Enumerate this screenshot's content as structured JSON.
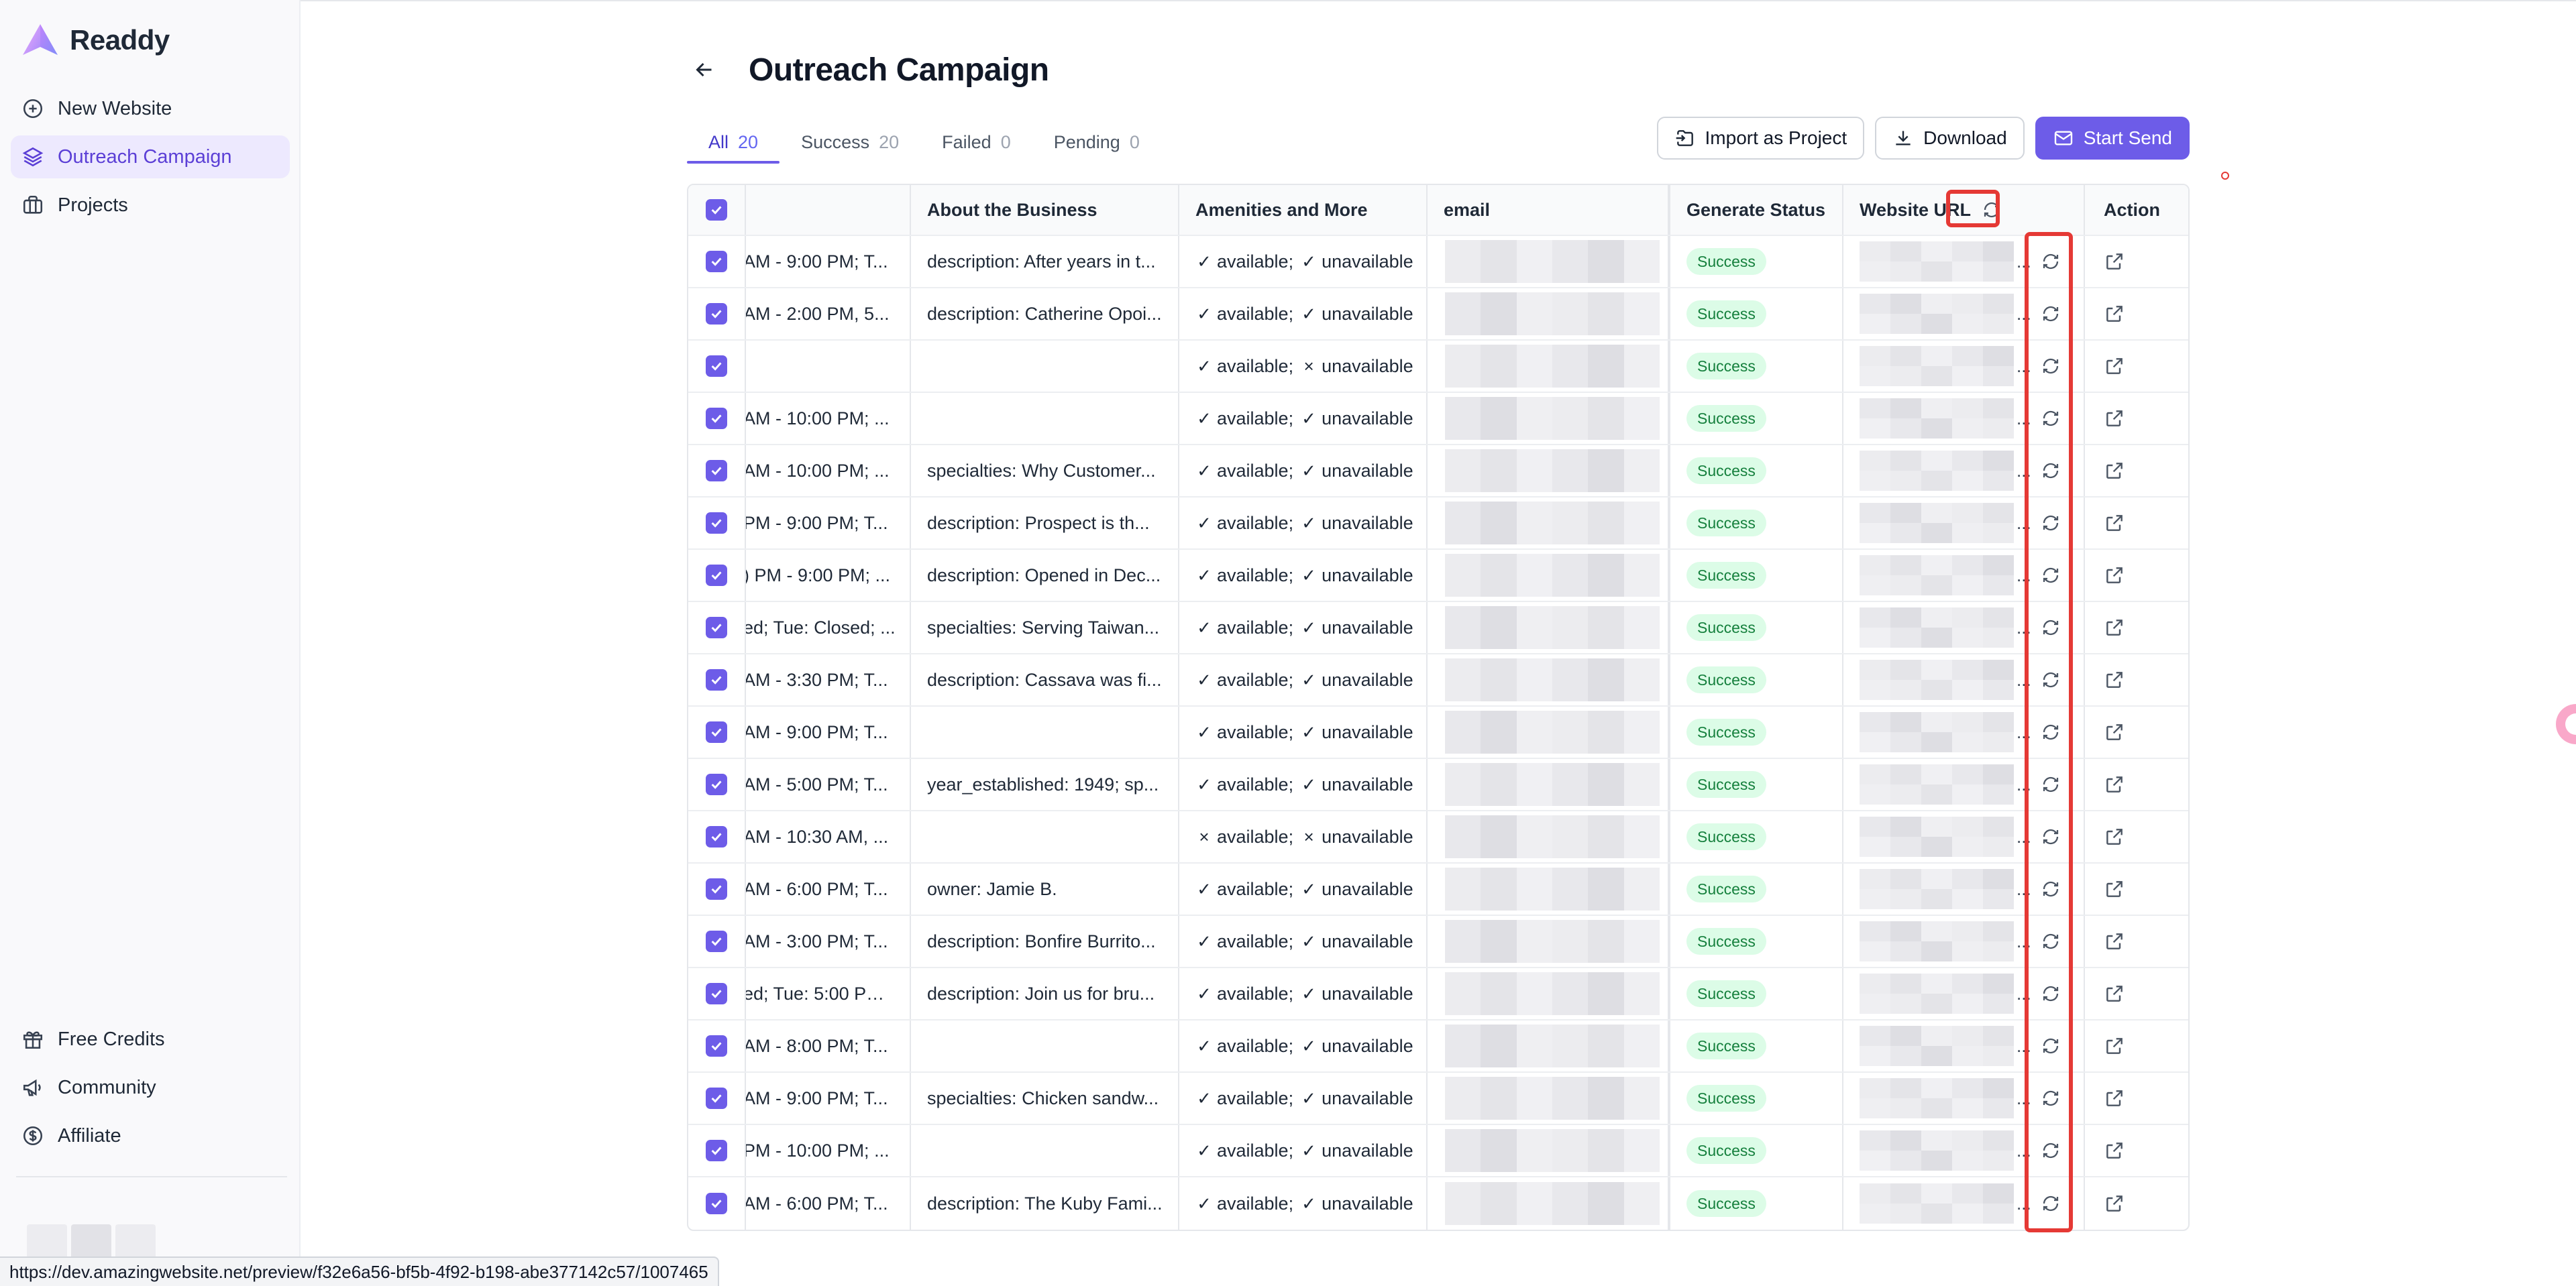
{
  "app": {
    "name": "Readdy",
    "colors": {
      "accent": "#6d5ce8",
      "accent_light": "#ede9fe",
      "success_bg": "#dcfce7",
      "success_text": "#15803d",
      "highlight": "#e53935"
    }
  },
  "sidebar": {
    "top_items": [
      {
        "label": "New Website",
        "icon": "plus-circle-icon",
        "active": false
      },
      {
        "label": "Outreach Campaign",
        "icon": "layers-icon",
        "active": true
      },
      {
        "label": "Projects",
        "icon": "briefcase-icon",
        "active": false
      }
    ],
    "bottom_items": [
      {
        "label": "Free Credits",
        "icon": "gift-icon"
      },
      {
        "label": "Community",
        "icon": "megaphone-icon"
      },
      {
        "label": "Affiliate",
        "icon": "dollar-circle-icon"
      }
    ]
  },
  "page": {
    "title": "Outreach Campaign",
    "back_icon": "arrow-left-icon"
  },
  "tabs": [
    {
      "label": "All",
      "count": "20",
      "active": true
    },
    {
      "label": "Success",
      "count": "20",
      "active": false
    },
    {
      "label": "Failed",
      "count": "0",
      "active": false
    },
    {
      "label": "Pending",
      "count": "0",
      "active": false
    }
  ],
  "toolbar": {
    "import_label": "Import as Project",
    "download_label": "Download",
    "start_send_label": "Start Send"
  },
  "table": {
    "columns": {
      "about": "About the Business",
      "amenities": "Amenities and More",
      "email": "email",
      "status": "Generate Status",
      "url": "Website URL",
      "action": "Action"
    },
    "rows": [
      {
        "hours": "AM - 9:00 PM; T...",
        "about": "description: After years in t...",
        "a1": "✓",
        "a2": "✓",
        "status": "Success"
      },
      {
        "hours": "AM - 2:00 PM, 5...",
        "about": "description: Catherine Opoi...",
        "a1": "✓",
        "a2": "✓",
        "status": "Success"
      },
      {
        "hours": "",
        "about": "",
        "a1": "✓",
        "a2": "×",
        "status": "Success"
      },
      {
        "hours": " AM - 10:00 PM; ...",
        "about": "",
        "a1": "✓",
        "a2": "✓",
        "status": "Success"
      },
      {
        "hours": "AM - 10:00 PM; ...",
        "about": "specialties: Why Customer...",
        "a1": "✓",
        "a2": "✓",
        "status": "Success"
      },
      {
        "hours": "PM - 9:00 PM; T...",
        "about": "description: Prospect is th...",
        "a1": "✓",
        "a2": "✓",
        "status": "Success"
      },
      {
        "hours": ") PM - 9:00 PM; ...",
        "about": "description: Opened in Dec...",
        "a1": "✓",
        "a2": "✓",
        "status": "Success"
      },
      {
        "hours": "ed; Tue: Closed; ...",
        "about": "specialties: Serving Taiwan...",
        "a1": "✓",
        "a2": "✓",
        "status": "Success"
      },
      {
        "hours": "AM - 3:30 PM; T...",
        "about": "description: Cassava was fi...",
        "a1": "✓",
        "a2": "✓",
        "status": "Success"
      },
      {
        "hours": "AM - 9:00 PM; T...",
        "about": "",
        "a1": "✓",
        "a2": "✓",
        "status": "Success"
      },
      {
        "hours": "AM - 5:00 PM; T...",
        "about": "year_established: 1949; sp...",
        "a1": "✓",
        "a2": "✓",
        "status": "Success"
      },
      {
        "hours": "AM - 10:30 AM, ...",
        "about": "",
        "a1": "×",
        "a2": "×",
        "status": "Success"
      },
      {
        "hours": "AM - 6:00 PM; T...",
        "about": "owner: Jamie B.",
        "a1": "✓",
        "a2": "✓",
        "status": "Success"
      },
      {
        "hours": "AM - 3:00 PM; T...",
        "about": "description: Bonfire Burrito...",
        "a1": "✓",
        "a2": "✓",
        "status": "Success"
      },
      {
        "hours": "ed; Tue: 5:00 PM...",
        "about": "description: Join us for bru...",
        "a1": "✓",
        "a2": "✓",
        "status": "Success"
      },
      {
        "hours": "AM - 8:00 PM; T...",
        "about": "",
        "a1": "✓",
        "a2": "✓",
        "status": "Success"
      },
      {
        "hours": "AM - 9:00 PM; T...",
        "about": "specialties: Chicken sandw...",
        "a1": "✓",
        "a2": "✓",
        "status": "Success"
      },
      {
        "hours": "PM - 10:00 PM; ...",
        "about": "",
        "a1": "✓",
        "a2": "✓",
        "status": "Success"
      },
      {
        "hours": "AM - 6:00 PM; T...",
        "about": "description: The Kuby Fami...",
        "a1": "✓",
        "a2": "✓",
        "status": "Success"
      }
    ],
    "available_text": "available;",
    "unavailable_text": "unavailable",
    "url_ellipsis": "..."
  },
  "statusbar": {
    "url": "https://dev.amazingwebsite.net/preview/f32e6a56-bf5b-4f92-b198-abe377142c57/1007465"
  }
}
